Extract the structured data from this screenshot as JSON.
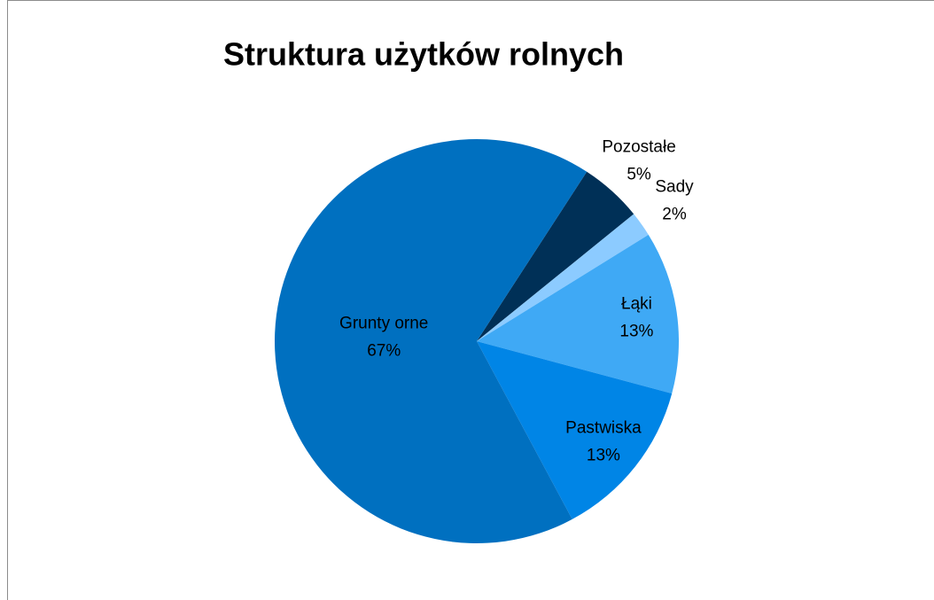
{
  "chart_data": {
    "type": "pie",
    "title": "Struktura użytków rolnych",
    "categories": [
      "Pozostałe",
      "Sady",
      "Łąki",
      "Pastwiska",
      "Grunty orne"
    ],
    "values": [
      5,
      2,
      13,
      13,
      67
    ],
    "value_labels": [
      "5%",
      "2%",
      "13%",
      "13%",
      "67%"
    ],
    "colors": [
      "#003057",
      "#8ccbff",
      "#3fa9f5",
      "#0085e6",
      "#0070c0"
    ]
  }
}
